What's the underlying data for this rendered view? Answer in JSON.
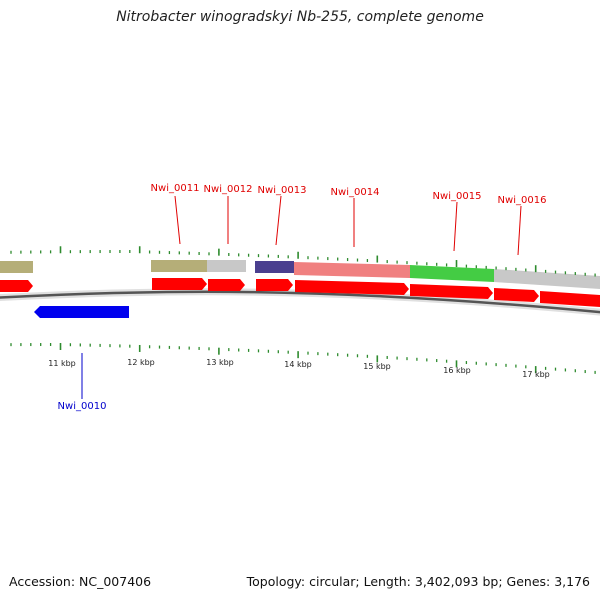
{
  "title": "Nitrobacter winogradskyi Nb-255, complete genome",
  "footer": {
    "accession": "Accession: NC_007406",
    "summary": "Topology: circular; Length: 3,402,093 bp; Genes: 3,176"
  },
  "genes_top": [
    {
      "id": "Nwi_0011",
      "color": "#e00000"
    },
    {
      "id": "Nwi_0012",
      "color": "#e00000"
    },
    {
      "id": "Nwi_0013",
      "color": "#e00000"
    },
    {
      "id": "Nwi_0014",
      "color": "#e00000"
    },
    {
      "id": "Nwi_0015",
      "color": "#e00000"
    },
    {
      "id": "Nwi_0016",
      "color": "#e00000"
    }
  ],
  "genes_bottom": [
    {
      "id": "Nwi_0010",
      "color": "#0000cc"
    }
  ],
  "scale_labels": [
    "11 kbp",
    "12 kbp",
    "13 kbp",
    "14 kbp",
    "15 kbp",
    "16 kbp",
    "17 kbp"
  ],
  "colors": {
    "forward_gene": "#ff0000",
    "reverse_gene": "#0000ee",
    "cog_olive": "#b5ae78",
    "cog_grey": "#c8c8c8",
    "cog_navy": "#4a3f8f",
    "cog_pink": "#f08080",
    "cog_green": "#44cc44",
    "tick": "#2e8b2e",
    "backbone": "#6a6a6a"
  }
}
